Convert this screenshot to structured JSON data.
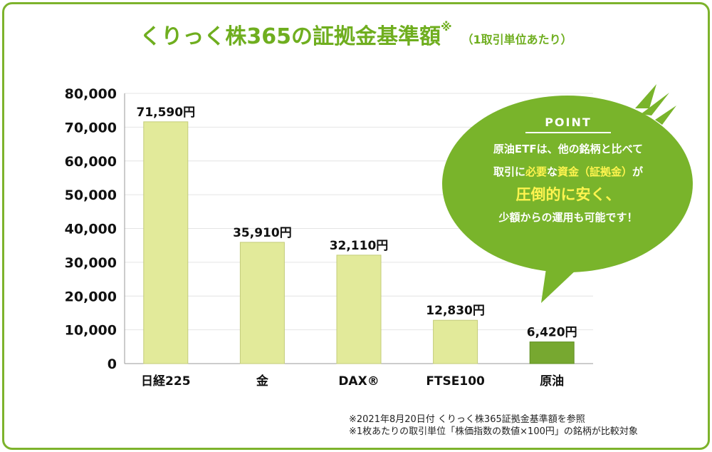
{
  "title": {
    "main": "くりっく株365の証拠金基準額",
    "mark": "※",
    "sub": "（1取引単位あたり）"
  },
  "colors": {
    "accent": "#7db32c",
    "bar": "#e2ea9a",
    "bar_highlight": "#77a830",
    "highlight_text": "#c1307a"
  },
  "chart_data": {
    "type": "bar",
    "title": "くりっく株365の証拠金基準額",
    "categories": [
      "日経225",
      "金",
      "DAX®",
      "FTSE100",
      "原油"
    ],
    "values": [
      71590,
      35910,
      32110,
      12830,
      6420
    ],
    "data_labels": [
      "71,590円",
      "35,910円",
      "32,110円",
      "12,830円",
      "6,420円"
    ],
    "highlight_index": 4,
    "ylim": [
      0,
      80000
    ],
    "yticks": [
      0,
      10000,
      20000,
      30000,
      40000,
      50000,
      60000,
      70000,
      80000
    ],
    "ytick_labels": [
      "0",
      "10,000",
      "20,000",
      "30,000",
      "40,000",
      "50,000",
      "60,000",
      "70,000",
      "80,000"
    ],
    "grid": true
  },
  "callout": {
    "label": "POINT",
    "line1": "原油ETFは、他の銘柄と比べて",
    "line2_prefix": "取引に",
    "line2_hl1": "必要",
    "line2_mid": "な",
    "line2_hl2": "資金（証拠金）",
    "line2_suffix": "が",
    "line3": "圧倒的に安く、",
    "line4": "少額からの運用も可能です！"
  },
  "notes": [
    "※2021年8月20日付 くりっく株365証拠金基準額を参照",
    "※1枚あたりの取引単位「株価指数の数値×100円」の銘柄が比較対象"
  ]
}
